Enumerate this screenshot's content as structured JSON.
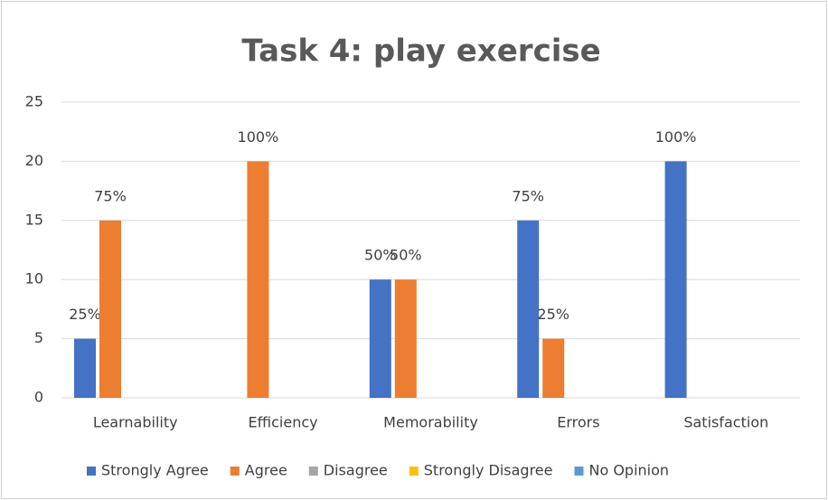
{
  "chart_data": {
    "type": "bar",
    "title": "Task 4: play exercise",
    "categories": [
      "Learnability",
      "Efficiency",
      "Memorability",
      "Errors",
      "Satisfaction"
    ],
    "series": [
      {
        "name": "Strongly Agree",
        "color": "#4472c4",
        "values": [
          5,
          0,
          10,
          15,
          20
        ],
        "data_labels": [
          "25%",
          null,
          "50%",
          "75%",
          "100%"
        ]
      },
      {
        "name": "Agree",
        "color": "#ed7d31",
        "values": [
          15,
          20,
          10,
          5,
          0
        ],
        "data_labels": [
          "75%",
          "100%",
          "50%",
          "25%",
          null
        ]
      },
      {
        "name": "Disagree",
        "color": "#a5a5a5",
        "values": [
          0,
          0,
          0,
          0,
          0
        ],
        "data_labels": [
          null,
          null,
          null,
          null,
          null
        ]
      },
      {
        "name": "Strongly Disagree",
        "color": "#ffc000",
        "values": [
          0,
          0,
          0,
          0,
          0
        ],
        "data_labels": [
          null,
          null,
          null,
          null,
          null
        ]
      },
      {
        "name": "No Opinion",
        "color": "#5b9bd5",
        "values": [
          0,
          0,
          0,
          0,
          0
        ],
        "data_labels": [
          null,
          null,
          null,
          null,
          null
        ]
      }
    ],
    "ylim": [
      0,
      25
    ],
    "yticks": [
      0,
      5,
      10,
      15,
      20,
      25
    ],
    "grid": true,
    "legend": "bottom"
  }
}
